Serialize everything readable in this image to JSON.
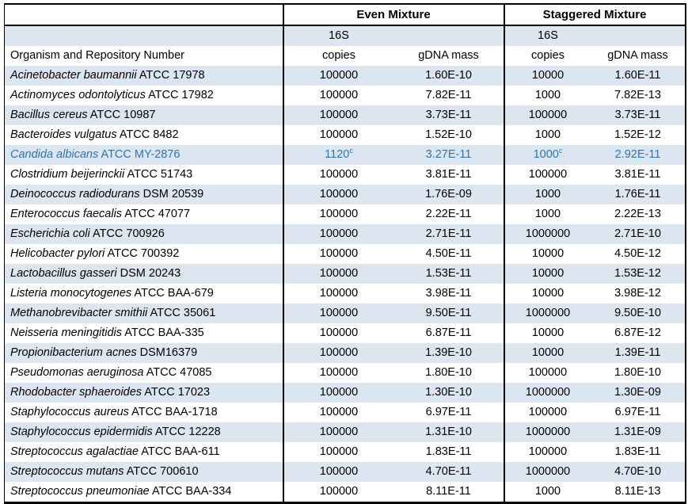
{
  "table": {
    "groups": {
      "even": "Even Mixture",
      "staggered": "Staggered Mixture"
    },
    "headers": {
      "organism": "Organism and Repository Number",
      "copies_line1": "16S",
      "copies_line2": "copies",
      "gdna": "gDNA mass"
    },
    "colors": {
      "band": "#DCE6F1",
      "highlight_text": "#2E75B6",
      "border": "#000000"
    },
    "footnote_marker": "c",
    "rows": [
      {
        "name": "Acinetobacter baumannii",
        "repo": "ATCC 17978",
        "even_copies": "100000",
        "even_gdna": "1.60E-10",
        "stag_copies": "10000",
        "stag_gdna": "1.60E-11"
      },
      {
        "name": "Actinomyces odontolyticus",
        "repo": "ATCC 17982",
        "even_copies": "100000",
        "even_gdna": "7.82E-11",
        "stag_copies": "1000",
        "stag_gdna": "7.82E-13"
      },
      {
        "name": "Bacillus cereus",
        "repo": "ATCC 10987",
        "even_copies": "100000",
        "even_gdna": "3.73E-11",
        "stag_copies": "100000",
        "stag_gdna": "3.73E-11"
      },
      {
        "name": "Bacteroides vulgatus",
        "repo": "ATCC 8482",
        "even_copies": "100000",
        "even_gdna": "1.52E-10",
        "stag_copies": "1000",
        "stag_gdna": "1.52E-12"
      },
      {
        "name": "Candida albicans",
        "repo": "ATCC MY-2876",
        "even_copies": "1120",
        "even_copies_sup": "c",
        "even_gdna": "3.27E-11",
        "stag_copies": "1000",
        "stag_copies_sup": "c",
        "stag_gdna": "2.92E-11",
        "text_color": "#2E75B6"
      },
      {
        "name": "Clostridium beijerinckii",
        "repo": "ATCC 51743",
        "even_copies": "100000",
        "even_gdna": "3.81E-11",
        "stag_copies": "100000",
        "stag_gdna": "3.81E-11"
      },
      {
        "name": "Deinococcus radiodurans",
        "repo": "DSM 20539",
        "even_copies": "100000",
        "even_gdna": "1.76E-09",
        "stag_copies": "1000",
        "stag_gdna": "1.76E-11"
      },
      {
        "name": "Enterococcus faecalis",
        "repo": "ATCC 47077",
        "even_copies": "100000",
        "even_gdna": "2.22E-11",
        "stag_copies": "1000",
        "stag_gdna": "2.22E-13"
      },
      {
        "name": "Escherichia coli",
        "repo": "ATCC 700926",
        "even_copies": "100000",
        "even_gdna": "2.71E-11",
        "stag_copies": "1000000",
        "stag_gdna": "2.71E-10"
      },
      {
        "name": "Helicobacter pylori",
        "repo": "ATCC 700392",
        "even_copies": "100000",
        "even_gdna": "4.50E-11",
        "stag_copies": "10000",
        "stag_gdna": "4.50E-12"
      },
      {
        "name": "Lactobacillus gasseri",
        "repo": "DSM 20243",
        "even_copies": "100000",
        "even_gdna": "1.53E-11",
        "stag_copies": "10000",
        "stag_gdna": "1.53E-12"
      },
      {
        "name": "Listeria monocytogenes",
        "repo": "ATCC BAA-679",
        "even_copies": "100000",
        "even_gdna": "3.98E-11",
        "stag_copies": "10000",
        "stag_gdna": "3.98E-12"
      },
      {
        "name": "Methanobrevibacter smithii",
        "repo": "ATCC 35061",
        "even_copies": "100000",
        "even_gdna": "9.50E-11",
        "stag_copies": "1000000",
        "stag_gdna": "9.50E-10"
      },
      {
        "name": "Neisseria meningitidis",
        "repo": "ATCC BAA-335",
        "even_copies": "100000",
        "even_gdna": "6.87E-11",
        "stag_copies": "10000",
        "stag_gdna": "6.87E-12"
      },
      {
        "name": "Propionibacterium acnes",
        "repo": "DSM16379",
        "even_copies": "100000",
        "even_gdna": "1.39E-10",
        "stag_copies": "10000",
        "stag_gdna": "1.39E-11"
      },
      {
        "name": "Pseudomonas aeruginosa",
        "repo": "ATCC 47085",
        "even_copies": "100000",
        "even_gdna": "1.80E-10",
        "stag_copies": "100000",
        "stag_gdna": "1.80E-10"
      },
      {
        "name": "Rhodobacter sphaeroides",
        "repo": "ATCC 17023",
        "even_copies": "100000",
        "even_gdna": "1.30E-10",
        "stag_copies": "1000000",
        "stag_gdna": "1.30E-09"
      },
      {
        "name": "Staphylococcus aureus",
        "repo": "ATCC BAA-1718",
        "even_copies": "100000",
        "even_gdna": "6.97E-11",
        "stag_copies": "100000",
        "stag_gdna": "6.97E-11"
      },
      {
        "name": "Staphylococcus epidermidis",
        "repo": "ATCC 12228",
        "even_copies": "100000",
        "even_gdna": "1.31E-10",
        "stag_copies": "1000000",
        "stag_gdna": "1.31E-09"
      },
      {
        "name": "Streptococcus agalactiae",
        "repo": "ATCC BAA-611",
        "even_copies": "100000",
        "even_gdna": "1.83E-11",
        "stag_copies": "100000",
        "stag_gdna": "1.83E-11"
      },
      {
        "name": "Streptococcus mutans",
        "repo": "ATCC 700610",
        "even_copies": "100000",
        "even_gdna": "4.70E-11",
        "stag_copies": "1000000",
        "stag_gdna": "4.70E-10"
      },
      {
        "name": "Streptococcus pneumoniae",
        "repo": "ATCC BAA-334",
        "even_copies": "100000",
        "even_gdna": "8.11E-11",
        "stag_copies": "1000",
        "stag_gdna": "8.11E-13"
      }
    ]
  }
}
